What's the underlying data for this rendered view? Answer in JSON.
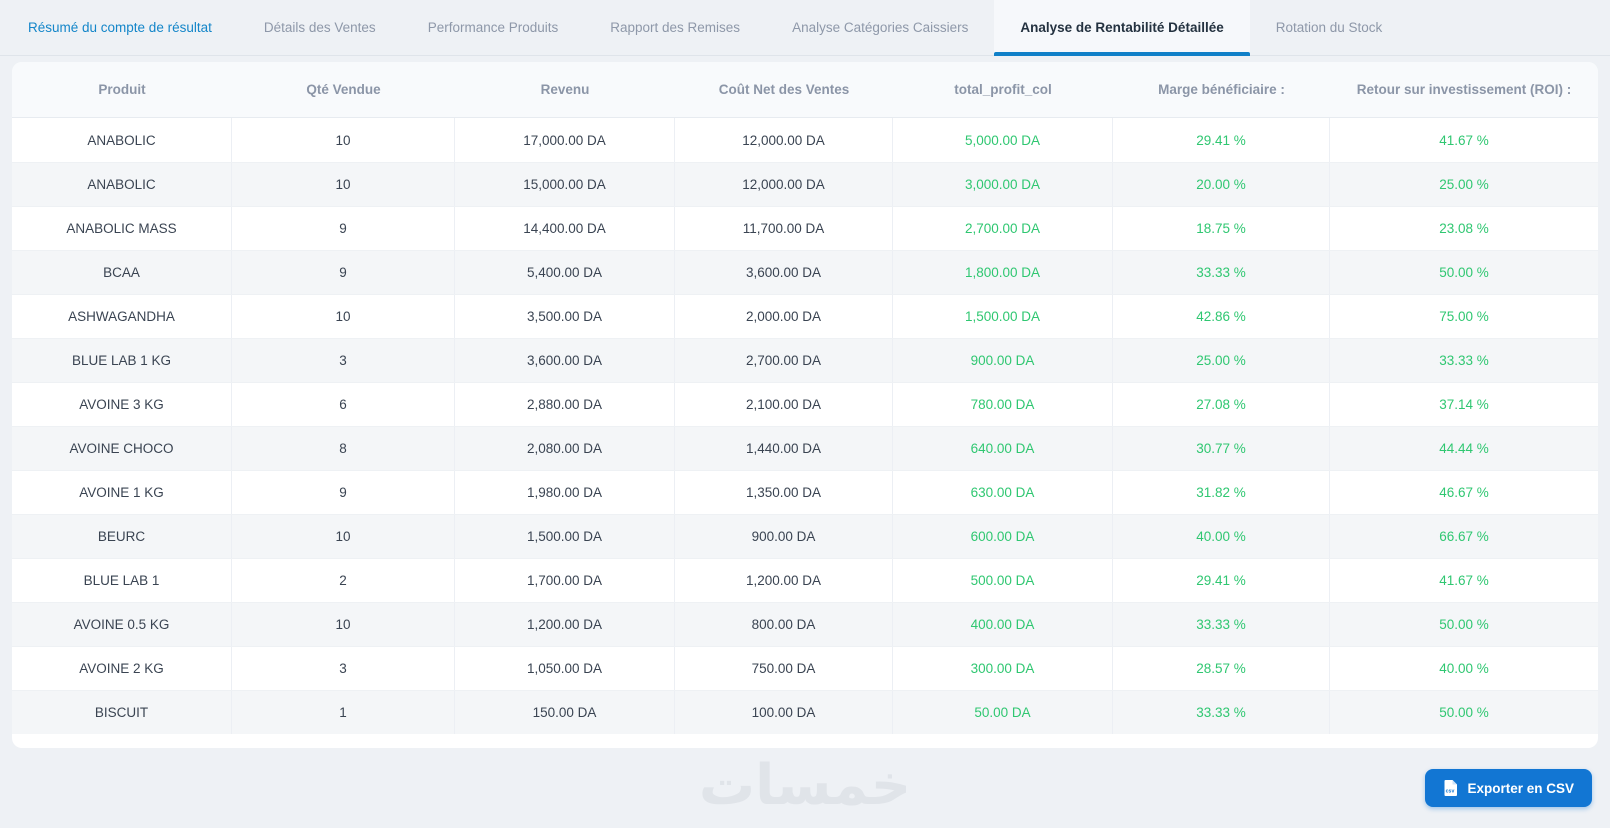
{
  "tabs": [
    {
      "label": "Résumé du compte de résultat",
      "active": false
    },
    {
      "label": "Détails des Ventes",
      "active": false
    },
    {
      "label": "Performance Produits",
      "active": false
    },
    {
      "label": "Rapport des Remises",
      "active": false
    },
    {
      "label": "Analyse Catégories Caissiers",
      "active": false
    },
    {
      "label": "Analyse de Rentabilité Détaillée",
      "active": true
    },
    {
      "label": "Rotation du Stock",
      "active": false
    }
  ],
  "table": {
    "columns": [
      "Produit",
      "Qté Vendue",
      "Revenu",
      "Coût Net des Ventes",
      "total_profit_col",
      "Marge bénéficiaire :",
      "Retour sur investissement (ROI) :"
    ],
    "rows": [
      [
        "ANABOLIC",
        "10",
        "17,000.00 DA",
        "12,000.00 DA",
        "5,000.00 DA",
        "29.41 %",
        "41.67 %"
      ],
      [
        "ANABOLIC",
        "10",
        "15,000.00 DA",
        "12,000.00 DA",
        "3,000.00 DA",
        "20.00 %",
        "25.00 %"
      ],
      [
        "ANABOLIC MASS",
        "9",
        "14,400.00 DA",
        "11,700.00 DA",
        "2,700.00 DA",
        "18.75 %",
        "23.08 %"
      ],
      [
        "BCAA",
        "9",
        "5,400.00 DA",
        "3,600.00 DA",
        "1,800.00 DA",
        "33.33 %",
        "50.00 %"
      ],
      [
        "ASHWAGANDHA",
        "10",
        "3,500.00 DA",
        "2,000.00 DA",
        "1,500.00 DA",
        "42.86 %",
        "75.00 %"
      ],
      [
        "BLUE LAB 1 KG",
        "3",
        "3,600.00 DA",
        "2,700.00 DA",
        "900.00 DA",
        "25.00 %",
        "33.33 %"
      ],
      [
        "AVOINE 3 KG",
        "6",
        "2,880.00 DA",
        "2,100.00 DA",
        "780.00 DA",
        "27.08 %",
        "37.14 %"
      ],
      [
        "AVOINE CHOCO",
        "8",
        "2,080.00 DA",
        "1,440.00 DA",
        "640.00 DA",
        "30.77 %",
        "44.44 %"
      ],
      [
        "AVOINE 1 KG",
        "9",
        "1,980.00 DA",
        "1,350.00 DA",
        "630.00 DA",
        "31.82 %",
        "46.67 %"
      ],
      [
        "BEURC",
        "10",
        "1,500.00 DA",
        "900.00 DA",
        "600.00 DA",
        "40.00 %",
        "66.67 %"
      ],
      [
        "BLUE LAB 1",
        "2",
        "1,700.00 DA",
        "1,200.00 DA",
        "500.00 DA",
        "29.41 %",
        "41.67 %"
      ],
      [
        "AVOINE 0.5 KG",
        "10",
        "1,200.00 DA",
        "800.00 DA",
        "400.00 DA",
        "33.33 %",
        "50.00 %"
      ],
      [
        "AVOINE 2 KG",
        "3",
        "1,050.00 DA",
        "750.00 DA",
        "300.00 DA",
        "28.57 %",
        "40.00 %"
      ],
      [
        "BISCUIT",
        "1",
        "150.00 DA",
        "100.00 DA",
        "50.00 DA",
        "33.33 %",
        "50.00 %"
      ]
    ],
    "green_columns_start_index": 4
  },
  "footer": {
    "watermark": "خمسات",
    "export_button_label": "Exporter en CSV",
    "export_icon": "csv-file-icon"
  },
  "colors": {
    "accent_blue": "#1080c8",
    "link_blue": "#1486c9",
    "button_blue": "#1276d3",
    "profit_green": "#2fc771",
    "page_background": "#eef1f5",
    "row_alt_background": "#f4f6f8"
  }
}
